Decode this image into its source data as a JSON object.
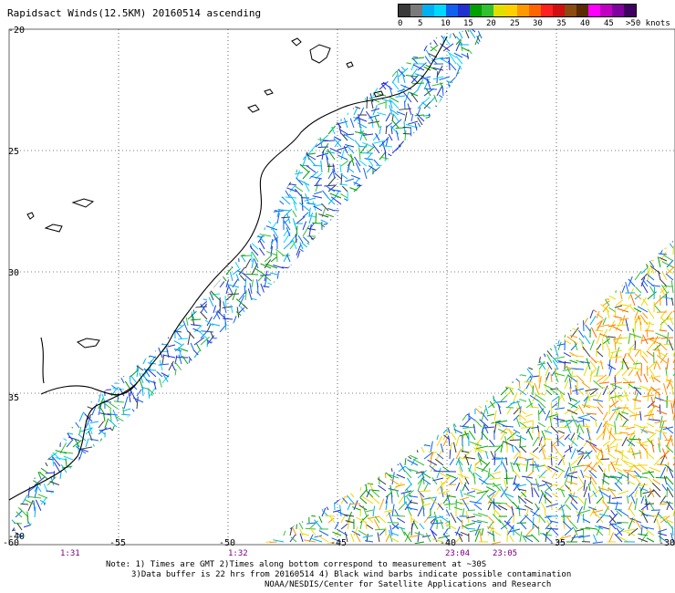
{
  "title": "Rapidsact Winds(12.5KM) 20160514 ascending",
  "legend": {
    "labels": [
      "0",
      "5",
      "10",
      "15",
      "20",
      "25",
      "30",
      "35",
      "40",
      "45",
      ">50 knots"
    ],
    "colors": [
      "#3a3a3a",
      "#7a7a7a",
      "#00b0f0",
      "#00d8ff",
      "#1060f0",
      "#2030d0",
      "#00a000",
      "#30c030",
      "#e0e000",
      "#ffd000",
      "#ff9900",
      "#ff6600",
      "#ff2020",
      "#d01010",
      "#8a4a10",
      "#5a2a00",
      "#ff00ff",
      "#c000c0",
      "#8000a0",
      "#400060"
    ]
  },
  "map": {
    "lat_labels": [
      "-20",
      "25",
      "30",
      "35",
      "-40"
    ],
    "lon_labels": [
      "-60",
      "-55",
      "-50",
      "-45",
      "-40",
      "-35",
      "-30"
    ],
    "times": [
      "1:31",
      "1:32",
      "23:04",
      "23:05"
    ],
    "time_color": "#7a0080"
  },
  "notes": [
    "Note: 1) Times are GMT 2)Times along bottom correspond to measurement at ~30S",
    "3)Data buffer is 22 hrs from 20160514 4) Black wind barbs indicate possible contamination",
    "NOAA/NESDIS/Center for Satellite Applications and Research"
  ]
}
